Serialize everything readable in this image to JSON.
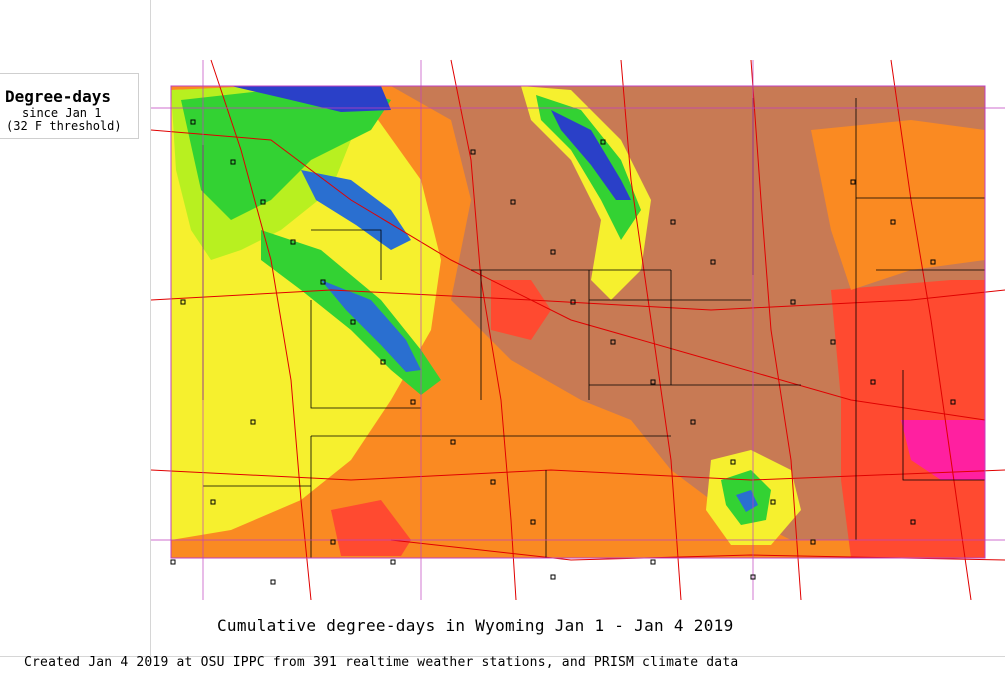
{
  "legend": {
    "title": "Degree-days",
    "subtitle_line1": "since Jan 1",
    "subtitle_line2": "(32 F threshold)"
  },
  "map": {
    "title": "Cumulative degree-days in Wyoming  Jan 1 - Jan 4 2019",
    "credit": "Created Jan 4 2019 at OSU IPPC from 391 realtime weather stations, and PRISM climate data",
    "region": "Wyoming",
    "station_count": 391,
    "colors": {
      "lowest": "#2020c0",
      "very_low": "#1f9fcf",
      "low": "#33d233",
      "medium_low": "#b8f020",
      "medium": "#fafa30",
      "medium_high": "#ffa020",
      "high": "#fa7a20",
      "baseline": "#c87a54",
      "very_high": "#ff3838",
      "highest": "#ff20a0",
      "county_lines": "#000000",
      "roads": "#e00000",
      "state_border": "#c040c0"
    }
  }
}
